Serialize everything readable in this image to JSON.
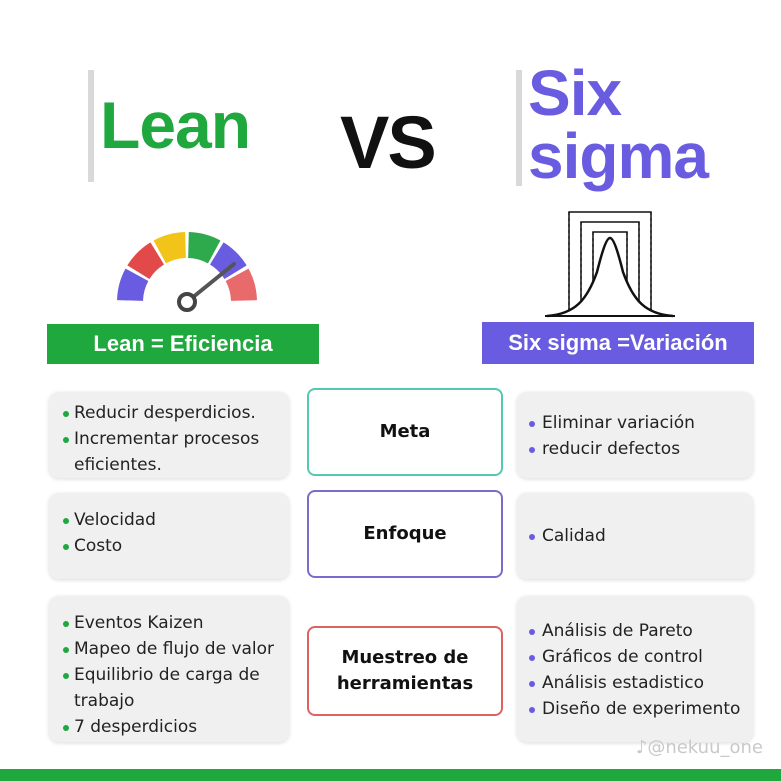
{
  "colors": {
    "lean": "#1ea83e",
    "six_sigma": "#6a5ce0",
    "meta_border": "#52c9b0",
    "enfoque_border": "#7e6acb",
    "herramientas_border": "#de6262"
  },
  "header": {
    "lean_title": "Lean",
    "vs": "VS",
    "six_title_line1": "Six",
    "six_title_line2": "sigma"
  },
  "icons": {
    "gauge": "gauge-icon",
    "bell_curve": "bell-curve-icon",
    "gauge_colors": [
      "#6a5ce0",
      "#e24a4a",
      "#f2c319",
      "#2ea94b",
      "#6a5ce0",
      "#e86a6a"
    ]
  },
  "banners": {
    "lean": "Lean = Eficiencia",
    "six": "Six sigma =Variación"
  },
  "rows": [
    {
      "category": "Meta",
      "lean_items": [
        "Reducir desperdicios.",
        "Incrementar procesos eficientes."
      ],
      "six_items": [
        "Eliminar variación",
        "reducir defectos"
      ]
    },
    {
      "category": "Enfoque",
      "lean_items": [
        "Velocidad",
        "Costo"
      ],
      "six_items": [
        "Calidad"
      ]
    },
    {
      "category": "Muestreo de herramientas",
      "lean_items": [
        "Eventos Kaizen",
        "Mapeo de flujo de valor",
        "Equilibrio de carga de trabajo",
        "7 desperdicios"
      ],
      "six_items": [
        "Análisis de Pareto",
        "Gráficos de control",
        "Análisis estadistico",
        "Diseño de experimento"
      ]
    }
  ],
  "credit": "@nekuu_one"
}
